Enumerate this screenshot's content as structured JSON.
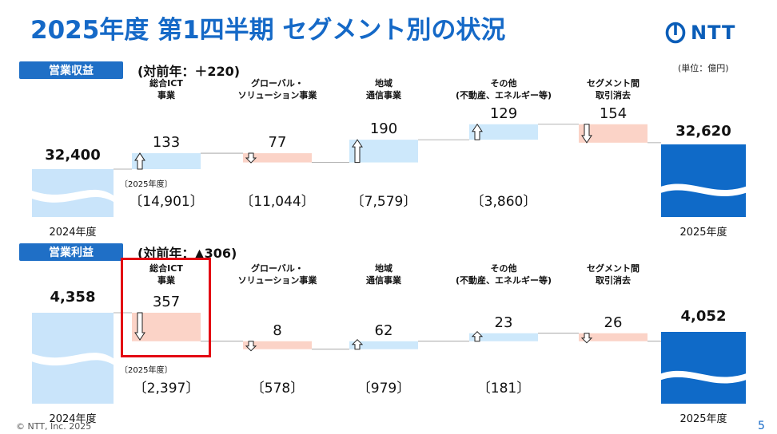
{
  "header": {
    "title": "2025年度 第1四半期 セグメント別の状況",
    "logo_text": "NTT",
    "unit": "(単位：億円)"
  },
  "footer": {
    "copyright": "© NTT, Inc. 2025",
    "page": "5"
  },
  "chart_data": [
    {
      "type": "bar",
      "title": "営業収益",
      "delta_label": "(対前年：＋220)",
      "start": {
        "label": "2024年度",
        "value": 32400,
        "display": "32,400"
      },
      "end": {
        "label": "2025年度",
        "value": 32620,
        "display": "32,620"
      },
      "subnote": "〔2025年度〕",
      "steps": [
        {
          "category": [
            "総合ICT",
            "事業"
          ],
          "change": 133,
          "direction": "up",
          "display": "133",
          "sub": "〔14,901〕"
        },
        {
          "category": [
            "グローバル・",
            "ソリューション事業"
          ],
          "change": -77,
          "direction": "down",
          "display": "77",
          "sub": "〔11,044〕"
        },
        {
          "category": [
            "地域",
            "通信事業"
          ],
          "change": 190,
          "direction": "up",
          "display": "190",
          "sub": "〔7,579〕"
        },
        {
          "category": [
            "その他",
            "(不動産、エネルギー等)"
          ],
          "change": 129,
          "direction": "up",
          "display": "129",
          "sub": "〔3,860〕"
        },
        {
          "category": [
            "セグメント間",
            "取引消去"
          ],
          "change": -154,
          "direction": "down",
          "display": "154",
          "sub": ""
        }
      ]
    },
    {
      "type": "bar",
      "title": "営業利益",
      "delta_label": "(対前年：▲306)",
      "start": {
        "label": "2024年度",
        "value": 4358,
        "display": "4,358"
      },
      "end": {
        "label": "2025年度",
        "value": 4052,
        "display": "4,052"
      },
      "subnote": "〔2025年度〕",
      "steps": [
        {
          "category": [
            "総合ICT",
            "事業"
          ],
          "change": -357,
          "direction": "down",
          "display": "357",
          "sub": "〔2,397〕",
          "highlight": true
        },
        {
          "category": [
            "グローバル・",
            "ソリューション事業"
          ],
          "change": -8,
          "direction": "down",
          "display": "8",
          "sub": "〔578〕"
        },
        {
          "category": [
            "地域",
            "通信事業"
          ],
          "change": 62,
          "direction": "up",
          "display": "62",
          "sub": "〔979〕"
        },
        {
          "category": [
            "その他",
            "(不動産、エネルギー等)"
          ],
          "change": 23,
          "direction": "up",
          "display": "23",
          "sub": "〔181〕"
        },
        {
          "category": [
            "セグメント間",
            "取引消去"
          ],
          "change": -26,
          "direction": "down",
          "display": "26",
          "sub": ""
        }
      ]
    }
  ],
  "colors": {
    "title": "#1569c7",
    "section_label_bg": "#1f6fc6",
    "increase": "#cde8fb",
    "decrease": "#fbd3c7",
    "start_bar": "#c9e4fa",
    "end_bar": "#0f6ac8",
    "highlight": "#e30613"
  }
}
